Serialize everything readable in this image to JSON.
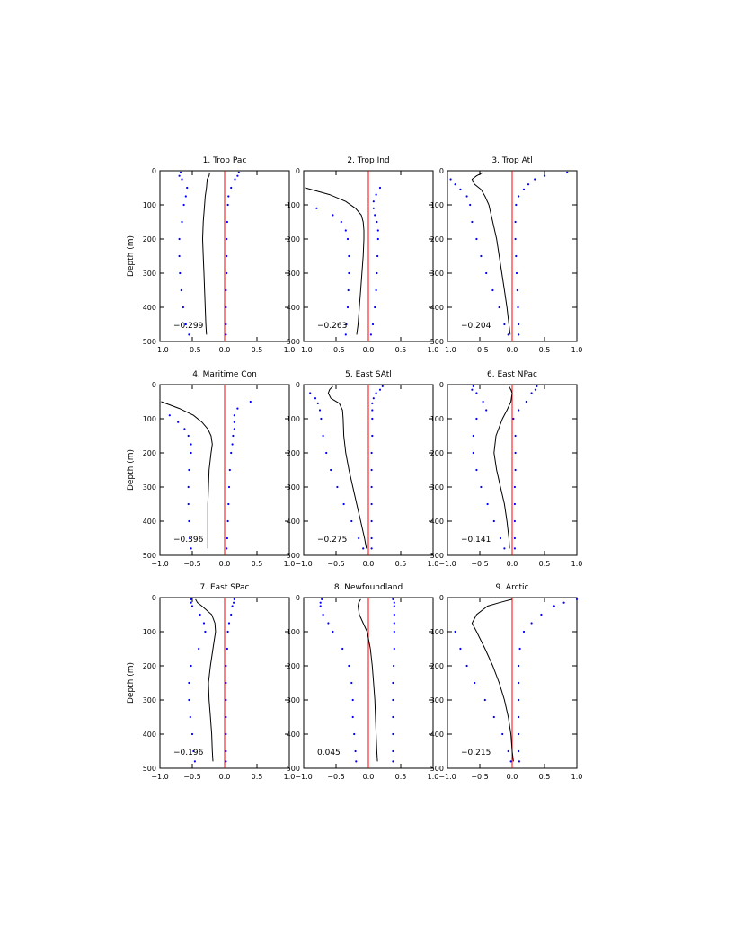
{
  "figure": {
    "ylabel": "Depth (m)"
  },
  "axes_common": {
    "xlim": [
      -1.0,
      1.0
    ],
    "ylim": [
      0,
      500
    ],
    "y_inverted": true,
    "xticks": [
      -1.0,
      -0.5,
      0.0,
      0.5,
      1.0
    ],
    "xtick_labels": [
      "−1.0",
      "−0.5",
      "0.0",
      "0.5",
      "1.0"
    ],
    "yticks": [
      0,
      100,
      200,
      300,
      400,
      500
    ],
    "ytick_labels": [
      "0",
      "100",
      "200",
      "300",
      "400",
      "500"
    ],
    "zero_line_color": "#ff0000",
    "mean_line_color": "#000000",
    "dot_color": "#0000ff"
  },
  "chart_data": [
    {
      "type": "line",
      "title": "1. Trop Pac",
      "annotation": "−0.299",
      "depth": [
        5,
        15,
        25,
        50,
        75,
        100,
        150,
        200,
        250,
        300,
        350,
        400,
        450,
        480
      ],
      "series": [
        {
          "role": "mean",
          "values": [
            -0.23,
            -0.24,
            -0.27,
            -0.28,
            -0.3,
            -0.31,
            -0.33,
            -0.34,
            -0.33,
            -0.32,
            -0.31,
            -0.3,
            -0.29,
            -0.28
          ]
        },
        {
          "role": "lower",
          "values": [
            -0.68,
            -0.7,
            -0.66,
            -0.58,
            -0.6,
            -0.63,
            -0.66,
            -0.7,
            -0.7,
            -0.69,
            -0.67,
            -0.64,
            -0.6,
            -0.55
          ]
        },
        {
          "role": "upper",
          "values": [
            0.22,
            0.2,
            0.16,
            0.1,
            0.06,
            0.05,
            0.04,
            0.03,
            0.03,
            0.03,
            0.02,
            0.02,
            0.02,
            0.02
          ]
        }
      ]
    },
    {
      "type": "line",
      "title": "2. Trop Ind",
      "annotation": "−0.263",
      "depth": [
        50,
        70,
        90,
        110,
        130,
        150,
        175,
        200,
        250,
        300,
        350,
        400,
        450,
        480
      ],
      "series": [
        {
          "role": "mean",
          "values": [
            -0.98,
            -0.6,
            -0.35,
            -0.2,
            -0.11,
            -0.08,
            -0.07,
            -0.07,
            -0.08,
            -0.1,
            -0.12,
            -0.14,
            -0.16,
            -0.18
          ]
        },
        {
          "role": "lower",
          "values": [
            null,
            null,
            null,
            -0.8,
            -0.55,
            -0.42,
            -0.35,
            -0.32,
            -0.3,
            -0.3,
            -0.31,
            -0.32,
            -0.34,
            -0.35
          ]
        },
        {
          "role": "upper",
          "values": [
            0.18,
            0.12,
            0.08,
            0.08,
            0.1,
            0.13,
            0.15,
            0.15,
            0.14,
            0.13,
            0.12,
            0.1,
            0.07,
            0.04
          ]
        }
      ]
    },
    {
      "type": "line",
      "title": "3. Trop Atl",
      "annotation": "−0.204",
      "depth": [
        5,
        15,
        25,
        40,
        55,
        75,
        100,
        150,
        200,
        250,
        300,
        350,
        400,
        450,
        480
      ],
      "series": [
        {
          "role": "mean",
          "values": [
            -0.45,
            -0.55,
            -0.62,
            -0.58,
            -0.48,
            -0.42,
            -0.36,
            -0.3,
            -0.24,
            -0.2,
            -0.16,
            -0.12,
            -0.08,
            -0.05,
            -0.03
          ]
        },
        {
          "role": "lower",
          "values": [
            null,
            null,
            -0.95,
            -0.88,
            -0.8,
            -0.7,
            -0.65,
            -0.62,
            -0.55,
            -0.48,
            -0.4,
            -0.3,
            -0.2,
            -0.12,
            -0.06
          ]
        },
        {
          "role": "upper",
          "values": [
            0.85,
            0.5,
            0.35,
            0.25,
            0.18,
            0.1,
            0.06,
            0.05,
            0.05,
            0.06,
            0.07,
            0.08,
            0.09,
            0.1,
            0.1
          ]
        }
      ]
    },
    {
      "type": "line",
      "title": "4. Maritime Con",
      "annotation": "−0.396",
      "depth": [
        50,
        70,
        90,
        110,
        130,
        150,
        175,
        200,
        250,
        300,
        350,
        400,
        450,
        480
      ],
      "series": [
        {
          "role": "mean",
          "values": [
            -0.98,
            -0.7,
            -0.48,
            -0.35,
            -0.26,
            -0.21,
            -0.19,
            -0.21,
            -0.24,
            -0.25,
            -0.26,
            -0.26,
            -0.26,
            -0.26
          ]
        },
        {
          "role": "lower",
          "values": [
            null,
            null,
            -0.85,
            -0.72,
            -0.62,
            -0.56,
            -0.52,
            -0.52,
            -0.55,
            -0.56,
            -0.56,
            -0.55,
            -0.54,
            -0.52
          ]
        },
        {
          "role": "upper",
          "values": [
            0.4,
            0.2,
            0.15,
            0.15,
            0.15,
            0.13,
            0.12,
            0.1,
            0.08,
            0.07,
            0.06,
            0.05,
            0.04,
            0.03
          ]
        }
      ]
    },
    {
      "type": "line",
      "title": "5. East SAtl",
      "annotation": "−0.275",
      "depth": [
        5,
        15,
        25,
        40,
        55,
        75,
        100,
        150,
        200,
        250,
        300,
        350,
        400,
        450,
        480
      ],
      "series": [
        {
          "role": "mean",
          "values": [
            -0.55,
            -0.6,
            -0.62,
            -0.58,
            -0.45,
            -0.4,
            -0.39,
            -0.38,
            -0.35,
            -0.3,
            -0.24,
            -0.18,
            -0.12,
            -0.06,
            -0.03
          ]
        },
        {
          "role": "lower",
          "values": [
            null,
            null,
            -0.9,
            -0.82,
            -0.78,
            -0.75,
            -0.73,
            -0.7,
            -0.65,
            -0.58,
            -0.48,
            -0.38,
            -0.26,
            -0.15,
            -0.08
          ]
        },
        {
          "role": "upper",
          "values": [
            0.22,
            0.18,
            0.12,
            0.08,
            0.06,
            0.06,
            0.06,
            0.06,
            0.05,
            0.05,
            0.05,
            0.05,
            0.05,
            0.05,
            0.05
          ]
        }
      ]
    },
    {
      "type": "line",
      "title": "6. East NPac",
      "annotation": "−0.141",
      "depth": [
        5,
        15,
        25,
        50,
        75,
        100,
        150,
        200,
        250,
        300,
        350,
        400,
        450,
        480
      ],
      "series": [
        {
          "role": "mean",
          "values": [
            -0.05,
            -0.02,
            0.0,
            -0.02,
            -0.08,
            -0.15,
            -0.25,
            -0.28,
            -0.24,
            -0.18,
            -0.12,
            -0.08,
            -0.05,
            -0.04
          ]
        },
        {
          "role": "lower",
          "values": [
            -0.6,
            -0.62,
            -0.55,
            -0.45,
            -0.4,
            -0.55,
            -0.6,
            -0.6,
            -0.55,
            -0.48,
            -0.38,
            -0.28,
            -0.18,
            -0.12
          ]
        },
        {
          "role": "upper",
          "values": [
            0.38,
            0.36,
            0.3,
            0.22,
            0.1,
            0.02,
            0.05,
            0.05,
            0.05,
            0.04,
            0.04,
            0.04,
            0.04,
            0.04
          ]
        }
      ]
    },
    {
      "type": "line",
      "title": "7. East SPac",
      "annotation": "−0.196",
      "depth": [
        5,
        15,
        25,
        50,
        75,
        100,
        150,
        200,
        250,
        300,
        350,
        400,
        450,
        480
      ],
      "series": [
        {
          "role": "mean",
          "values": [
            -0.45,
            -0.42,
            -0.35,
            -0.2,
            -0.15,
            -0.14,
            -0.18,
            -0.22,
            -0.25,
            -0.24,
            -0.22,
            -0.2,
            -0.19,
            -0.18
          ]
        },
        {
          "role": "lower",
          "values": [
            -0.52,
            -0.52,
            -0.5,
            -0.38,
            -0.32,
            -0.3,
            -0.4,
            -0.52,
            -0.55,
            -0.55,
            -0.53,
            -0.5,
            -0.48,
            -0.46
          ]
        },
        {
          "role": "upper",
          "values": [
            0.15,
            0.14,
            0.12,
            0.1,
            0.07,
            0.05,
            0.04,
            0.02,
            0.02,
            0.02,
            0.02,
            0.02,
            0.02,
            0.02
          ]
        }
      ]
    },
    {
      "type": "line",
      "title": "8. Newfoundland",
      "annotation": "0.045",
      "depth": [
        5,
        15,
        25,
        50,
        75,
        100,
        150,
        200,
        250,
        300,
        350,
        400,
        450,
        480
      ],
      "series": [
        {
          "role": "mean",
          "values": [
            -0.12,
            -0.15,
            -0.16,
            -0.14,
            -0.08,
            -0.02,
            0.03,
            0.06,
            0.08,
            0.1,
            0.11,
            0.12,
            0.13,
            0.14
          ]
        },
        {
          "role": "lower",
          "values": [
            -0.72,
            -0.74,
            -0.74,
            -0.7,
            -0.62,
            -0.55,
            -0.4,
            -0.3,
            -0.26,
            -0.24,
            -0.24,
            -0.22,
            -0.2,
            -0.19
          ]
        },
        {
          "role": "upper",
          "values": [
            0.38,
            0.4,
            0.4,
            0.4,
            0.4,
            0.4,
            0.4,
            0.39,
            0.38,
            0.38,
            0.38,
            0.38,
            0.38,
            0.38
          ]
        }
      ]
    },
    {
      "type": "line",
      "title": "9. Arctic",
      "annotation": "−0.215",
      "depth": [
        5,
        15,
        25,
        50,
        75,
        100,
        150,
        200,
        250,
        300,
        350,
        400,
        450,
        480
      ],
      "series": [
        {
          "role": "mean",
          "values": [
            0.0,
            -0.2,
            -0.38,
            -0.55,
            -0.62,
            -0.55,
            -0.42,
            -0.3,
            -0.2,
            -0.12,
            -0.06,
            -0.02,
            0.0,
            0.02
          ]
        },
        {
          "role": "lower",
          "values": [
            null,
            null,
            null,
            null,
            null,
            -0.88,
            -0.8,
            -0.7,
            -0.58,
            -0.42,
            -0.28,
            -0.15,
            -0.06,
            -0.02
          ]
        },
        {
          "role": "upper",
          "values": [
            1.0,
            0.8,
            0.65,
            0.45,
            0.3,
            0.18,
            0.12,
            0.1,
            0.1,
            0.1,
            0.1,
            0.1,
            0.1,
            0.11
          ]
        }
      ]
    }
  ]
}
